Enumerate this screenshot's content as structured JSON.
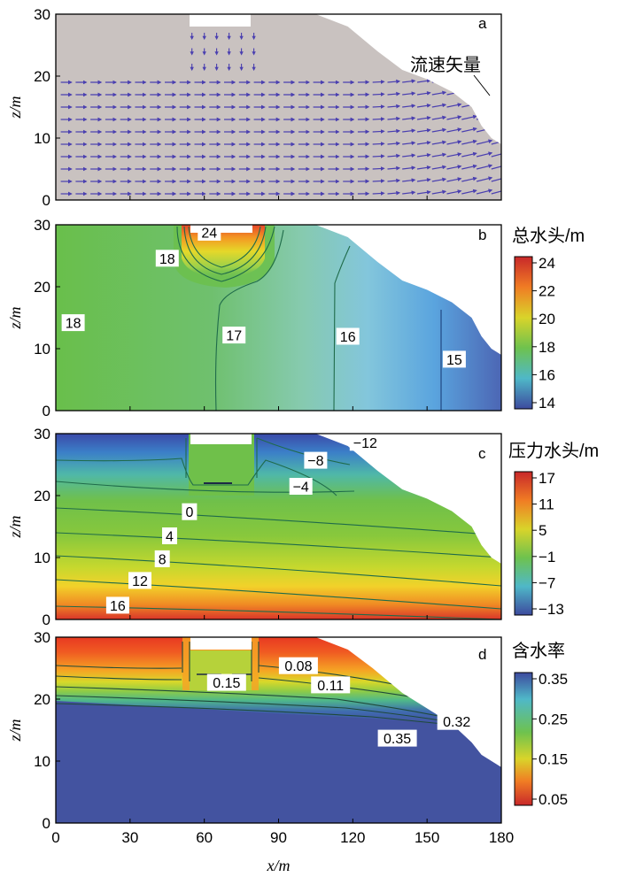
{
  "chart_data": [
    {
      "panel": "a",
      "type": "vector_field",
      "ylabel": "z/m",
      "xlim": [
        0,
        180
      ],
      "ylim": [
        0,
        30
      ],
      "yticks": [
        "0",
        "10",
        "20",
        "30"
      ],
      "annotation": "流速矢量",
      "colors": {
        "domain": "#c9c2c0",
        "arrow": "#4a3fb0"
      }
    },
    {
      "panel": "b",
      "type": "contour",
      "ylabel": "z/m",
      "xlim": [
        0,
        180
      ],
      "ylim": [
        0,
        30
      ],
      "yticks": [
        "0",
        "10",
        "20",
        "30"
      ],
      "colorbar": {
        "label": "总水头/m",
        "ticks": [
          "24",
          "22",
          "20",
          "18",
          "16",
          "14"
        ],
        "range": [
          14,
          24
        ]
      },
      "contour_labels": [
        {
          "text": "24",
          "x": 62,
          "z": 28.8
        },
        {
          "text": "18",
          "x": 45,
          "z": 24.6
        },
        {
          "text": "18",
          "x": 7,
          "z": 14.2
        },
        {
          "text": "17",
          "x": 72,
          "z": 12.2
        },
        {
          "text": "16",
          "x": 118,
          "z": 12
        },
        {
          "text": "15",
          "x": 161,
          "z": 8.3
        }
      ]
    },
    {
      "panel": "c",
      "type": "contour",
      "ylabel": "z/m",
      "xlim": [
        0,
        180
      ],
      "ylim": [
        0,
        30
      ],
      "yticks": [
        "0",
        "10",
        "20",
        "30"
      ],
      "colorbar": {
        "label": "压力水头/m",
        "ticks": [
          "17",
          "11",
          "5",
          "−1",
          "−7",
          "−13"
        ],
        "range": [
          -13,
          17
        ]
      },
      "contour_labels": [
        {
          "text": "−12",
          "x": 125,
          "z": 28.6
        },
        {
          "text": "−8",
          "x": 105,
          "z": 25.7
        },
        {
          "text": "−4",
          "x": 99,
          "z": 21.5
        },
        {
          "text": "0",
          "x": 54,
          "z": 17.4
        },
        {
          "text": "4",
          "x": 46,
          "z": 13.5
        },
        {
          "text": "8",
          "x": 43,
          "z": 9.8
        },
        {
          "text": "12",
          "x": 34,
          "z": 6.3
        },
        {
          "text": "16",
          "x": 25,
          "z": 2.3
        }
      ]
    },
    {
      "panel": "d",
      "type": "contour",
      "ylabel": "z/m",
      "xlabel": "x/m",
      "xlim": [
        0,
        180
      ],
      "ylim": [
        0,
        30
      ],
      "xticks": [
        "0",
        "30",
        "60",
        "90",
        "120",
        "150",
        "180"
      ],
      "yticks": [
        "0",
        "10",
        "20",
        "30"
      ],
      "colorbar": {
        "label": "含水率",
        "ticks": [
          "0.35",
          "0.25",
          "0.15",
          "0.05"
        ],
        "range": [
          0.05,
          0.35
        ]
      },
      "contour_labels": [
        {
          "text": "0.08",
          "x": 98,
          "z": 25.4
        },
        {
          "text": "0.11",
          "x": 111,
          "z": 22.3
        },
        {
          "text": "0.15",
          "x": 69,
          "z": 22.7
        },
        {
          "text": "0.32",
          "x": 162,
          "z": 16.4
        },
        {
          "text": "0.35",
          "x": 138,
          "z": 13.7
        }
      ]
    }
  ]
}
